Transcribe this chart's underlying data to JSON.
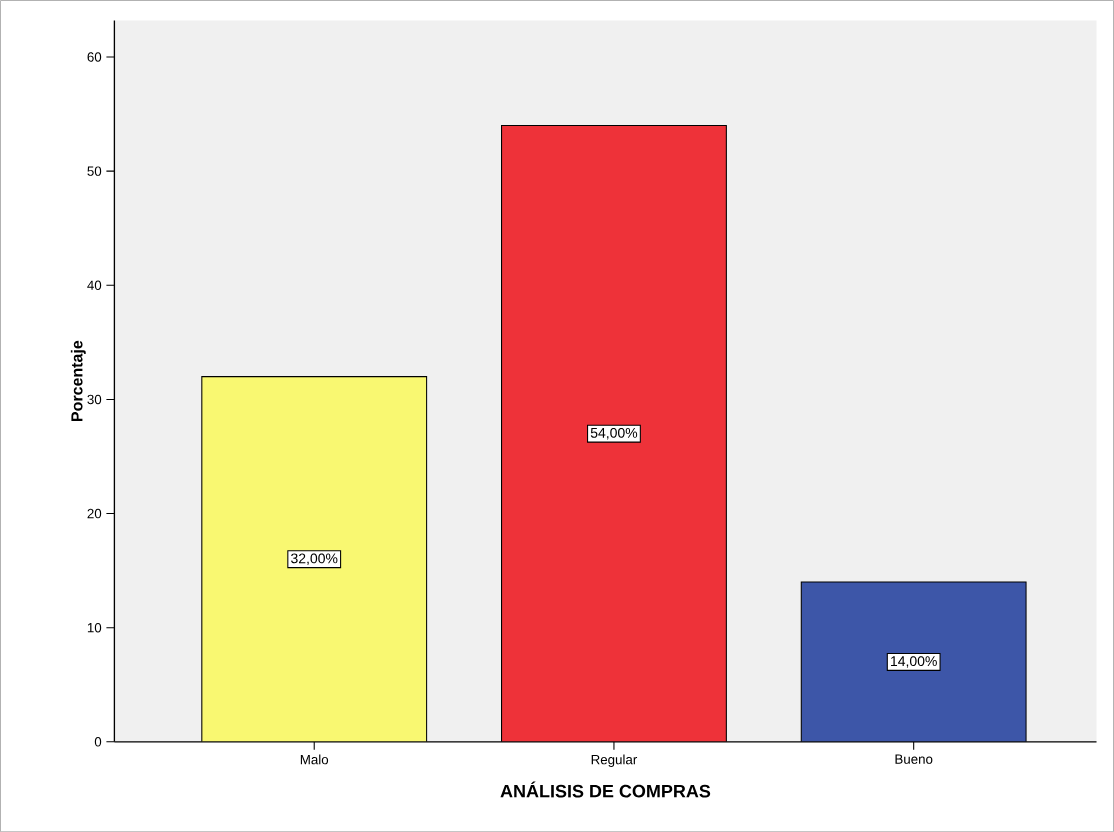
{
  "chart_data": {
    "type": "bar",
    "xlabel": "ANÁLISIS DE COMPRAS",
    "ylabel": "Porcentaje",
    "categories": [
      "Malo",
      "Regular",
      "Bueno"
    ],
    "values": [
      32,
      54,
      14
    ],
    "value_labels": [
      "32,00%",
      "54,00%",
      "14,00%"
    ],
    "colors": [
      "#f9f871",
      "#ee3239",
      "#3d56a8"
    ],
    "ylim": [
      0,
      63.2
    ],
    "yticks": [
      0,
      10,
      20,
      30,
      40,
      50,
      60
    ]
  }
}
